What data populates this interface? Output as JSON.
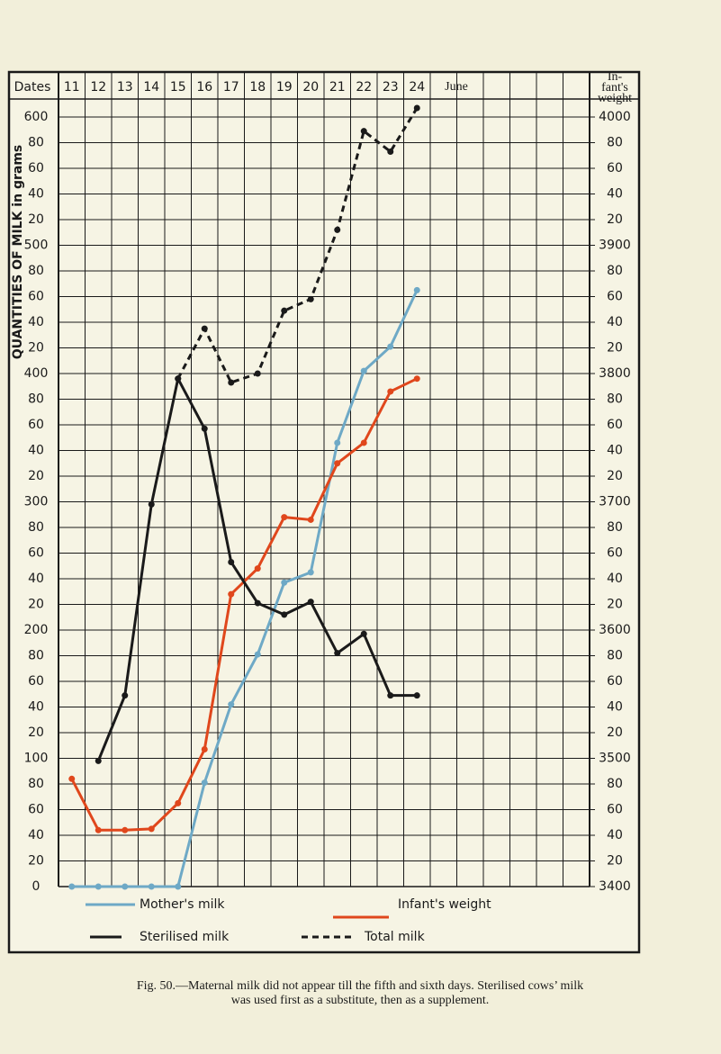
{
  "chart_data": {
    "type": "line",
    "x_label": "Dates",
    "y_label": "QUANTITIES OF MILK in grams",
    "y2_label": [
      "In-",
      "fant's",
      "weight"
    ],
    "month_label": "June",
    "categories": [
      "11",
      "12",
      "13",
      "14",
      "15",
      "16",
      "17",
      "18",
      "19",
      "20",
      "21",
      "22",
      "23",
      "24"
    ],
    "series": [
      {
        "name": "Mother's milk",
        "color": "#6ea9c6",
        "style": "solid",
        "values": [
          0,
          0,
          0,
          0,
          0,
          81,
          142,
          181,
          237,
          245,
          346,
          402,
          421,
          465
        ]
      },
      {
        "name": "Infant's weight",
        "color": "#e0471c",
        "style": "solid",
        "axis": "y2",
        "values": [
          3484,
          3444,
          3444,
          3445,
          3465,
          3507,
          3628,
          3648,
          3688,
          3686,
          3730,
          3746,
          3786,
          3796
        ]
      },
      {
        "name": "Sterilised milk",
        "color": "#1a1a1a",
        "style": "solid",
        "values": [
          null,
          98,
          149,
          298,
          396,
          357,
          253,
          221,
          212,
          222,
          182,
          197,
          149,
          149
        ]
      },
      {
        "name": "Total milk",
        "color": "#1a1a1a",
        "style": "dashed",
        "values": [
          null,
          null,
          null,
          null,
          396,
          435,
          393,
          400,
          449,
          458,
          512,
          589,
          573,
          607
        ]
      }
    ],
    "ylim": [
      0,
      600
    ],
    "yticks": [
      0,
      {
        "value": 20,
        "label": "20"
      },
      40,
      60,
      80,
      100,
      {
        "value": 120,
        "label": "20"
      },
      {
        "value": 140,
        "label": "40"
      },
      {
        "value": 160,
        "label": "60"
      },
      {
        "value": 180,
        "label": "80"
      },
      200,
      {
        "value": 220,
        "label": "20"
      },
      {
        "value": 240,
        "label": "40"
      },
      {
        "value": 260,
        "label": "60"
      },
      {
        "value": 280,
        "label": "80"
      },
      300,
      {
        "value": 320,
        "label": "20"
      },
      {
        "value": 340,
        "label": "40"
      },
      {
        "value": 360,
        "label": "60"
      },
      {
        "value": 380,
        "label": "80"
      },
      400,
      {
        "value": 420,
        "label": "20"
      },
      {
        "value": 440,
        "label": "40"
      },
      {
        "value": 460,
        "label": "60"
      },
      {
        "value": 480,
        "label": "80"
      },
      500,
      {
        "value": 520,
        "label": "20"
      },
      {
        "value": 540,
        "label": "40"
      },
      {
        "value": 560,
        "label": "60"
      },
      {
        "value": 580,
        "label": "80"
      },
      600
    ],
    "y2lim": [
      3400,
      4000
    ],
    "y2ticks": [
      3400,
      {
        "value": 3420,
        "label": "20"
      },
      {
        "value": 3440,
        "label": "40"
      },
      {
        "value": 3460,
        "label": "60"
      },
      {
        "value": 3480,
        "label": "80"
      },
      3500,
      {
        "value": 3520,
        "label": "20"
      },
      {
        "value": 3540,
        "label": "40"
      },
      {
        "value": 3560,
        "label": "60"
      },
      {
        "value": 3580,
        "label": "80"
      },
      3600,
      {
        "value": 3620,
        "label": "20"
      },
      {
        "value": 3640,
        "label": "40"
      },
      {
        "value": 3660,
        "label": "60"
      },
      {
        "value": 3680,
        "label": "80"
      },
      3700,
      {
        "value": 3720,
        "label": "20"
      },
      {
        "value": 3740,
        "label": "40"
      },
      {
        "value": 3760,
        "label": "60"
      },
      {
        "value": 3780,
        "label": "80"
      },
      3800,
      {
        "value": 3820,
        "label": "20"
      },
      {
        "value": 3840,
        "label": "40"
      },
      {
        "value": 3860,
        "label": "60"
      },
      {
        "value": 3880,
        "label": "80"
      },
      3900,
      {
        "value": 3920,
        "label": "20"
      },
      {
        "value": 3940,
        "label": "40"
      },
      {
        "value": 3960,
        "label": "60"
      },
      {
        "value": 3980,
        "label": "80"
      },
      4000
    ],
    "grid": true,
    "caption": [
      "Fig. 50.—Maternal milk did not appear till the fifth and sixth days. Sterilised cows’ milk",
      "was used first as a substitute, then as a supplement."
    ]
  }
}
